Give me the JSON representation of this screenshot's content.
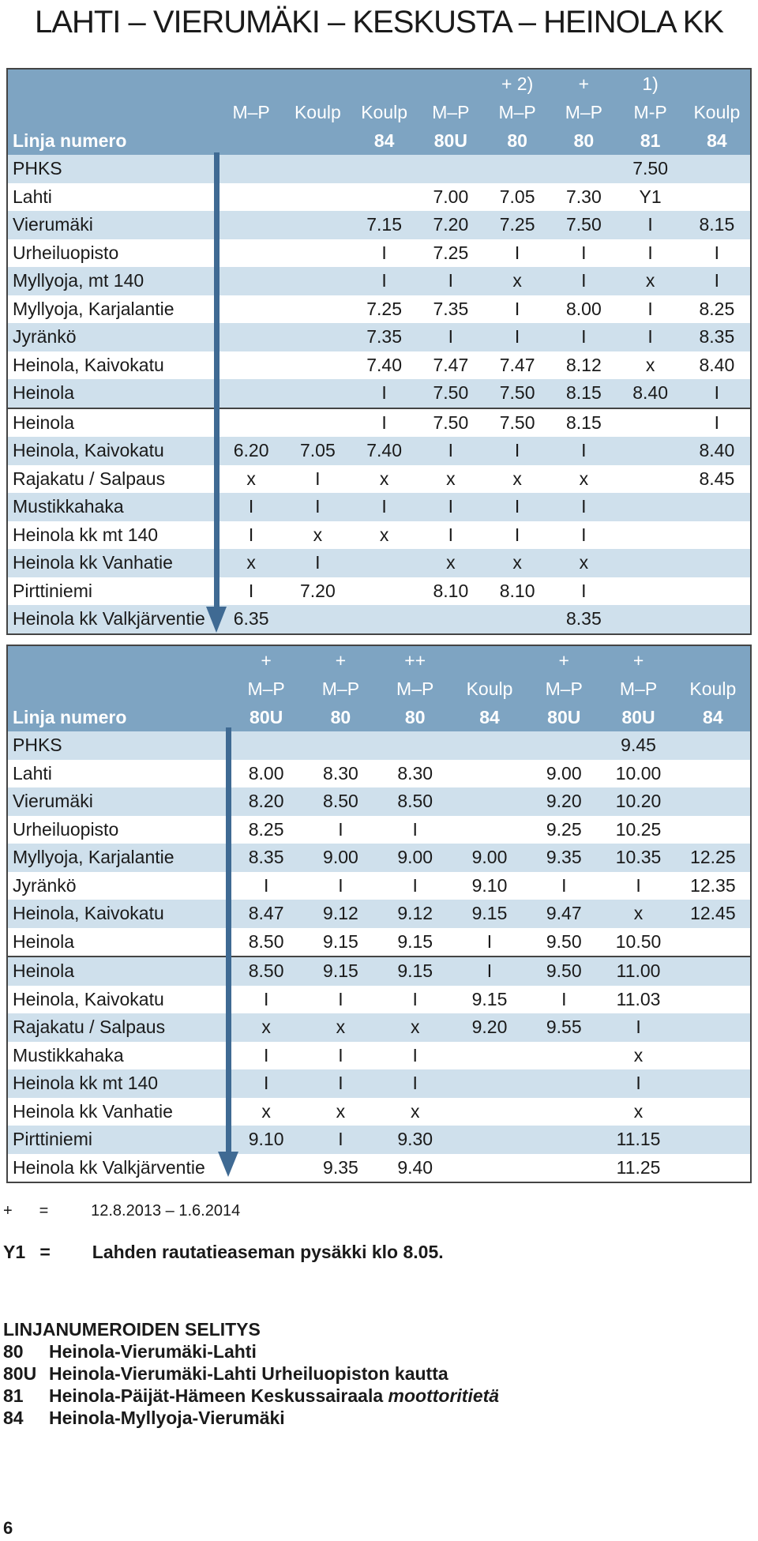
{
  "title": "LAHTI – VIERUMÄKI – KESKUSTA – HEINOLA KK",
  "table1": {
    "header_rows": [
      [
        "",
        "",
        "",
        "",
        "",
        "+ 2)",
        "+",
        "1)",
        ""
      ],
      [
        "",
        "M–P",
        "Koulp",
        "Koulp",
        "M–P",
        "M–P",
        "M–P",
        "M-P",
        "Koulp"
      ],
      [
        "Linja numero",
        "",
        "",
        "84",
        "80U",
        "80",
        "80",
        "81",
        "84"
      ]
    ],
    "rows": [
      [
        "PHKS",
        "",
        "",
        "",
        "",
        "",
        "",
        "7.50",
        ""
      ],
      [
        "Lahti",
        "",
        "",
        "",
        "7.00",
        "7.05",
        "7.30",
        "Y1",
        ""
      ],
      [
        "Vierumäki",
        "",
        "",
        "7.15",
        "7.20",
        "7.25",
        "7.50",
        "I",
        "8.15"
      ],
      [
        "Urheiluopisto",
        "",
        "",
        "I",
        "7.25",
        "I",
        "I",
        "I",
        "I"
      ],
      [
        "Myllyoja, mt 140",
        "",
        "",
        "I",
        "I",
        "x",
        "I",
        "x",
        "I"
      ],
      [
        "Myllyoja, Karjalantie",
        "",
        "",
        "7.25",
        "7.35",
        "I",
        "8.00",
        "I",
        "8.25"
      ],
      [
        "Jyränkö",
        "",
        "",
        "7.35",
        "I",
        "I",
        "I",
        "I",
        "8.35"
      ],
      [
        "Heinola, Kaivokatu",
        "",
        "",
        "7.40",
        "7.47",
        "7.47",
        "8.12",
        "x",
        "8.40"
      ],
      [
        "Heinola",
        "",
        "",
        "I",
        "7.50",
        "7.50",
        "8.15",
        "8.40",
        "I"
      ],
      [
        "Heinola",
        "",
        "",
        "I",
        "7.50",
        "7.50",
        "8.15",
        "",
        "I"
      ],
      [
        "Heinola, Kaivokatu",
        "6.20",
        "7.05",
        "7.40",
        "I",
        "I",
        "I",
        "",
        "8.40"
      ],
      [
        "Rajakatu / Salpaus",
        "x",
        "I",
        "x",
        "x",
        "x",
        "x",
        "",
        "8.45"
      ],
      [
        "Mustikkahaka",
        "I",
        "I",
        "I",
        "I",
        "I",
        "I",
        "",
        ""
      ],
      [
        "Heinola kk mt 140",
        "I",
        "x",
        "x",
        "I",
        "I",
        "I",
        "",
        ""
      ],
      [
        "Heinola kk Vanhatie",
        "x",
        "I",
        "",
        "x",
        "x",
        "x",
        "",
        ""
      ],
      [
        "Pirttiniemi",
        "I",
        "7.20",
        "",
        "8.10",
        "8.10",
        "I",
        "",
        ""
      ],
      [
        "Heinola kk Valkjärventie",
        "6.35",
        "",
        "",
        "",
        "",
        "8.35",
        "",
        ""
      ]
    ]
  },
  "table2": {
    "header_rows": [
      [
        "",
        "+",
        "+",
        "++",
        "",
        "+",
        "+",
        ""
      ],
      [
        "",
        "M–P",
        "M–P",
        "M–P",
        "Koulp",
        "M–P",
        "M–P",
        "Koulp"
      ],
      [
        "Linja numero",
        "80U",
        "80",
        "80",
        "84",
        "80U",
        "80U",
        "84"
      ]
    ],
    "rows": [
      [
        "PHKS",
        "",
        "",
        "",
        "",
        "",
        "9.45",
        ""
      ],
      [
        "Lahti",
        "8.00",
        "8.30",
        "8.30",
        "",
        "9.00",
        "10.00",
        ""
      ],
      [
        "Vierumäki",
        "8.20",
        "8.50",
        "8.50",
        "",
        "9.20",
        "10.20",
        ""
      ],
      [
        "Urheiluopisto",
        "8.25",
        "I",
        "I",
        "",
        "9.25",
        "10.25",
        ""
      ],
      [
        "Myllyoja, Karjalantie",
        "8.35",
        "9.00",
        "9.00",
        "9.00",
        "9.35",
        "10.35",
        "12.25"
      ],
      [
        "Jyränkö",
        "I",
        "I",
        "I",
        "9.10",
        "I",
        "I",
        "12.35"
      ],
      [
        "Heinola, Kaivokatu",
        "8.47",
        "9.12",
        "9.12",
        "9.15",
        "9.47",
        "x",
        "12.45"
      ],
      [
        "Heinola",
        "8.50",
        "9.15",
        "9.15",
        "I",
        "9.50",
        "10.50",
        ""
      ],
      [
        "Heinola",
        "8.50",
        "9.15",
        "9.15",
        "I",
        "9.50",
        "11.00",
        ""
      ],
      [
        "Heinola, Kaivokatu",
        "I",
        "I",
        "I",
        "9.15",
        "I",
        "11.03",
        ""
      ],
      [
        "Rajakatu / Salpaus",
        "x",
        "x",
        "x",
        "9.20",
        "9.55",
        "I",
        ""
      ],
      [
        "Mustikkahaka",
        "I",
        "I",
        "I",
        "",
        "",
        "x",
        ""
      ],
      [
        "Heinola kk mt 140",
        "I",
        "I",
        "I",
        "",
        "",
        "I",
        ""
      ],
      [
        "Heinola kk Vanhatie",
        "x",
        "x",
        "x",
        "",
        "",
        "x",
        ""
      ],
      [
        "Pirttiniemi",
        "9.10",
        "I",
        "9.30",
        "",
        "",
        "11.15",
        ""
      ],
      [
        "Heinola kk Valkjärventie",
        "",
        "9.35",
        "9.40",
        "",
        "",
        "11.25",
        ""
      ]
    ]
  },
  "notes": {
    "plus_symbol": "+",
    "plus_eq": "=",
    "plus_text": "12.8.2013 – 1.6.2014",
    "y1_symbol": "Y1",
    "y1_eq": "=",
    "y1_text": "Lahden rautatieaseman pysäkki klo 8.05."
  },
  "legend": {
    "heading": "LINJANUMEROIDEN SELITYS",
    "items": [
      {
        "code": "80",
        "text": "Heinola-Vierumäki-Lahti",
        "italic": ""
      },
      {
        "code": "80U",
        "text": "Heinola-Vierumäki-Lahti Urheiluopiston kautta",
        "italic": ""
      },
      {
        "code": "81",
        "text": "Heinola-Päijät-Hämeen Keskussairaala ",
        "italic": "moottoritietä"
      },
      {
        "code": "84",
        "text": "Heinola-Myllyoja-Vierumäki",
        "italic": ""
      }
    ]
  },
  "page_number": "6",
  "colors": {
    "header": "#7ea4c2",
    "shade": "#cfe0ec",
    "arrow": "#3f6a93"
  }
}
